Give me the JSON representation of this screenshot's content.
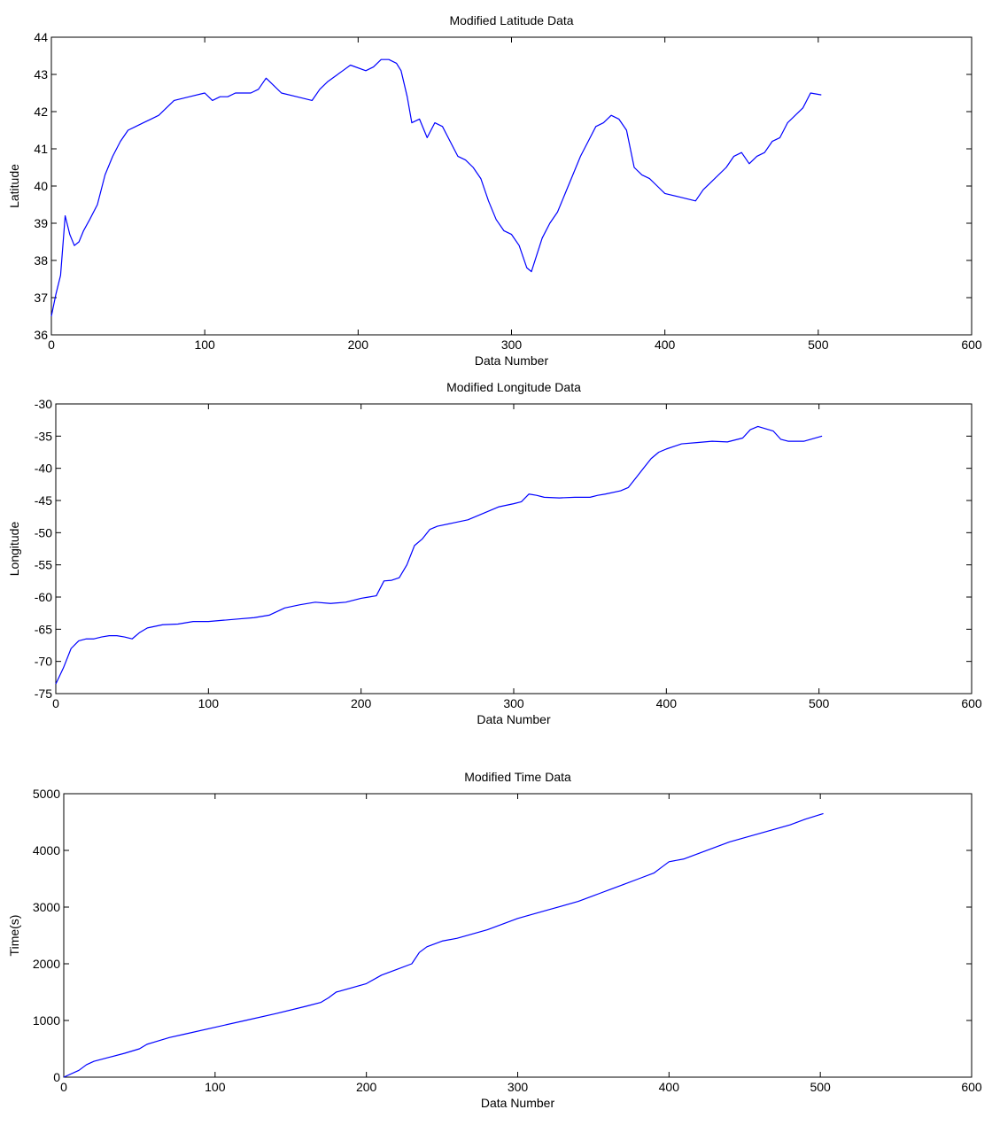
{
  "colors": {
    "line": "#0000ff",
    "axes": "#000000",
    "background": "#ffffff"
  },
  "chart_data": [
    {
      "type": "line",
      "title": "Modified Latitude Data",
      "xlabel": "Data Number",
      "ylabel": "Latitude",
      "xlim": [
        0,
        600
      ],
      "ylim": [
        36,
        44
      ],
      "xticks": [
        0,
        100,
        200,
        300,
        400,
        500,
        600
      ],
      "yticks": [
        36,
        37,
        38,
        39,
        40,
        41,
        42,
        43,
        44
      ],
      "grid": false,
      "series": [
        {
          "x": [
            0,
            3,
            6,
            9,
            12,
            15,
            18,
            21,
            25,
            30,
            35,
            40,
            45,
            50,
            55,
            60,
            65,
            70,
            80,
            90,
            100,
            105,
            110,
            115,
            120,
            125,
            130,
            135,
            140,
            145,
            150,
            160,
            170,
            175,
            180,
            190,
            195,
            205,
            210,
            215,
            220,
            225,
            228,
            232,
            235,
            240,
            245,
            250,
            255,
            260,
            265,
            270,
            275,
            280,
            285,
            290,
            295,
            300,
            305,
            310,
            313,
            320,
            325,
            330,
            335,
            340,
            345,
            350,
            355,
            360,
            365,
            370,
            375,
            380,
            385,
            390,
            395,
            400,
            410,
            420,
            425,
            430,
            440,
            445,
            450,
            455,
            460,
            465,
            470,
            475,
            480,
            490,
            495,
            502
          ],
          "y": [
            36.5,
            37.1,
            37.6,
            39.2,
            38.7,
            38.4,
            38.5,
            38.8,
            39.1,
            39.5,
            40.3,
            40.8,
            41.2,
            41.5,
            41.6,
            41.7,
            41.8,
            41.9,
            42.3,
            42.4,
            42.5,
            42.3,
            42.4,
            42.4,
            42.5,
            42.5,
            42.5,
            42.6,
            42.9,
            42.7,
            42.5,
            42.4,
            42.3,
            42.6,
            42.8,
            43.1,
            43.25,
            43.1,
            43.2,
            43.4,
            43.4,
            43.3,
            43.1,
            42.4,
            41.7,
            41.8,
            41.3,
            41.7,
            41.6,
            41.2,
            40.8,
            40.7,
            40.5,
            40.2,
            39.6,
            39.1,
            38.8,
            38.7,
            38.4,
            37.8,
            37.7,
            38.6,
            39.0,
            39.3,
            39.8,
            40.3,
            40.8,
            41.2,
            41.6,
            41.7,
            41.9,
            41.8,
            41.5,
            40.5,
            40.3,
            40.2,
            40.0,
            39.8,
            39.7,
            39.6,
            39.9,
            40.1,
            40.5,
            40.8,
            40.9,
            40.6,
            40.8,
            40.9,
            41.2,
            41.3,
            41.7,
            42.1,
            42.5,
            42.45
          ]
        }
      ]
    },
    {
      "type": "line",
      "title": "Modified Longitude Data",
      "xlabel": "Data Number",
      "ylabel": "Longitude",
      "xlim": [
        0,
        600
      ],
      "ylim": [
        -75,
        -30
      ],
      "xticks": [
        0,
        100,
        200,
        300,
        400,
        500,
        600
      ],
      "yticks": [
        -75,
        -70,
        -65,
        -60,
        -55,
        -50,
        -45,
        -40,
        -35,
        -30
      ],
      "grid": false,
      "series": [
        {
          "x": [
            0,
            5,
            10,
            15,
            20,
            25,
            30,
            35,
            40,
            45,
            50,
            55,
            60,
            70,
            80,
            90,
            100,
            110,
            120,
            130,
            140,
            150,
            160,
            170,
            180,
            190,
            200,
            205,
            210,
            215,
            220,
            225,
            230,
            235,
            240,
            245,
            250,
            260,
            270,
            280,
            290,
            300,
            305,
            310,
            315,
            320,
            330,
            340,
            350,
            355,
            360,
            370,
            375,
            380,
            385,
            390,
            395,
            400,
            410,
            420,
            430,
            440,
            450,
            455,
            460,
            470,
            475,
            480,
            490,
            502
          ],
          "y": [
            -73.5,
            -71.0,
            -68.0,
            -66.8,
            -66.5,
            -66.5,
            -66.2,
            -66.0,
            -66.0,
            -66.2,
            -66.5,
            -65.5,
            -64.8,
            -64.3,
            -64.2,
            -63.8,
            -63.8,
            -63.6,
            -63.4,
            -63.2,
            -62.8,
            -61.7,
            -61.2,
            -60.8,
            -61.0,
            -60.8,
            -60.2,
            -60.0,
            -59.8,
            -57.5,
            -57.4,
            -57.0,
            -55.0,
            -52.0,
            -51.0,
            -49.5,
            -49.0,
            -48.5,
            -48.0,
            -47.0,
            -46.0,
            -45.5,
            -45.2,
            -44.0,
            -44.2,
            -44.5,
            -44.6,
            -44.5,
            -44.5,
            -44.2,
            -44.0,
            -43.5,
            -43.0,
            -41.5,
            -40.0,
            -38.5,
            -37.5,
            -37.0,
            -36.2,
            -36.0,
            -35.8,
            -35.9,
            -35.3,
            -34.0,
            -33.5,
            -34.2,
            -35.5,
            -35.8,
            -35.8,
            -35.0
          ]
        }
      ]
    },
    {
      "type": "line",
      "title": "Modified Time Data",
      "xlabel": "Data Number",
      "ylabel": "Time(s)",
      "xlim": [
        0,
        600
      ],
      "ylim": [
        0,
        5000
      ],
      "xticks": [
        0,
        100,
        200,
        300,
        400,
        500,
        600
      ],
      "yticks": [
        0,
        1000,
        2000,
        3000,
        4000,
        5000
      ],
      "grid": false,
      "series": [
        {
          "x": [
            0,
            10,
            15,
            20,
            30,
            40,
            50,
            55,
            60,
            70,
            80,
            100,
            120,
            140,
            160,
            170,
            175,
            180,
            200,
            210,
            220,
            230,
            235,
            240,
            250,
            260,
            280,
            300,
            320,
            340,
            350,
            355,
            360,
            370,
            380,
            390,
            395,
            400,
            410,
            420,
            440,
            460,
            480,
            490,
            502
          ],
          "y": [
            0,
            120,
            220,
            280,
            350,
            420,
            500,
            580,
            620,
            700,
            760,
            880,
            1000,
            1120,
            1250,
            1320,
            1400,
            1500,
            1650,
            1800,
            1900,
            2000,
            2200,
            2300,
            2400,
            2450,
            2600,
            2800,
            2950,
            3100,
            3200,
            3250,
            3300,
            3400,
            3500,
            3600,
            3700,
            3800,
            3850,
            3950,
            4150,
            4300,
            4450,
            4550,
            4650
          ]
        }
      ]
    }
  ]
}
